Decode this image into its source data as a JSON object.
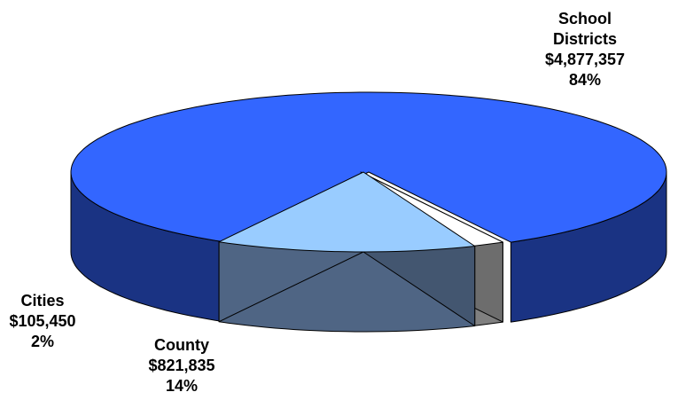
{
  "chart_data": {
    "type": "pie",
    "style": "3d-exploded",
    "slices": [
      {
        "label_lines": [
          "School",
          "Districts"
        ],
        "amount": "$4,877,357",
        "percent": "84%",
        "value": 4877357,
        "top_color": "#3366FF",
        "side_color": "#1A3383"
      },
      {
        "label_lines": [
          "County"
        ],
        "amount": "$821,835",
        "percent": "14%",
        "value": 821835,
        "top_color": "#99CCFF",
        "side_color": "#4F6584"
      },
      {
        "label_lines": [
          "Cities"
        ],
        "amount": "$105,450",
        "percent": "2%",
        "value": 105450,
        "top_color": "#FFFFFF",
        "side_color": "#808080"
      }
    ]
  }
}
